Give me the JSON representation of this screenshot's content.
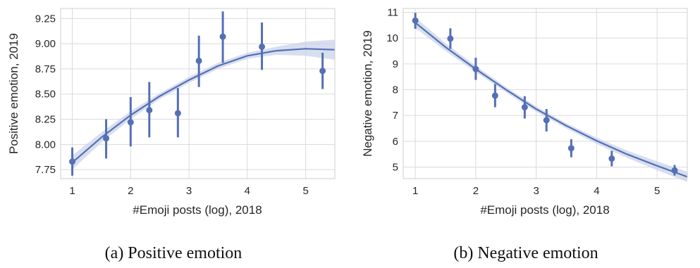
{
  "colors": {
    "series": "#5470b4",
    "band": "#c9d3ea",
    "grid": "#dadada",
    "text": "#262626"
  },
  "chart_data": [
    {
      "type": "scatter",
      "caption": "(a)  Positive emotion",
      "xlabel": "#Emoji posts (log), 2018",
      "ylabel": "Positive emotion, 2019",
      "xlim": [
        0.8,
        5.5
      ],
      "ylim": [
        7.66,
        9.35
      ],
      "xticks": [
        1,
        2,
        3,
        4,
        5
      ],
      "yticks": [
        7.75,
        8.0,
        8.25,
        8.5,
        8.75,
        9.0,
        9.25
      ],
      "ytick_labels": [
        "7.75",
        "8.00",
        "8.25",
        "8.50",
        "8.75",
        "9.00",
        "9.25"
      ],
      "grid": true,
      "points": [
        {
          "x": 1.0,
          "y": 7.83,
          "lo": 7.69,
          "hi": 7.97
        },
        {
          "x": 1.58,
          "y": 8.06,
          "lo": 7.86,
          "hi": 8.25
        },
        {
          "x": 2.0,
          "y": 8.22,
          "lo": 7.98,
          "hi": 8.47
        },
        {
          "x": 2.32,
          "y": 8.34,
          "lo": 8.07,
          "hi": 8.62
        },
        {
          "x": 2.81,
          "y": 8.31,
          "lo": 8.07,
          "hi": 8.56
        },
        {
          "x": 3.17,
          "y": 8.83,
          "lo": 8.57,
          "hi": 9.08
        },
        {
          "x": 3.58,
          "y": 9.07,
          "lo": 8.81,
          "hi": 9.32
        },
        {
          "x": 4.25,
          "y": 8.97,
          "lo": 8.74,
          "hi": 9.21
        },
        {
          "x": 5.29,
          "y": 8.73,
          "lo": 8.55,
          "hi": 8.91
        }
      ],
      "fit": {
        "x": [
          1.0,
          1.5,
          2.0,
          2.5,
          3.0,
          3.5,
          4.0,
          4.5,
          5.0,
          5.5
        ],
        "y": [
          7.82,
          8.07,
          8.29,
          8.48,
          8.64,
          8.78,
          8.88,
          8.93,
          8.95,
          8.94
        ],
        "lo": [
          7.75,
          8.02,
          8.25,
          8.45,
          8.61,
          8.75,
          8.85,
          8.89,
          8.88,
          8.84
        ],
        "hi": [
          7.89,
          8.12,
          8.33,
          8.51,
          8.67,
          8.81,
          8.91,
          8.97,
          9.02,
          9.04
        ]
      }
    },
    {
      "type": "scatter",
      "caption": "(b)  Negative emotion",
      "xlabel": "#Emoji posts (log), 2018",
      "ylabel": "Negative emotion, 2019",
      "xlim": [
        0.8,
        5.5
      ],
      "ylim": [
        4.55,
        11.15
      ],
      "xticks": [
        1,
        2,
        3,
        4,
        5
      ],
      "yticks": [
        5,
        6,
        7,
        8,
        9,
        10,
        11
      ],
      "ytick_labels": [
        "5",
        "6",
        "7",
        "8",
        "9",
        "10",
        "11"
      ],
      "grid": true,
      "points": [
        {
          "x": 1.0,
          "y": 10.68,
          "lo": 10.36,
          "hi": 10.98
        },
        {
          "x": 1.58,
          "y": 9.98,
          "lo": 9.58,
          "hi": 10.38
        },
        {
          "x": 2.0,
          "y": 8.8,
          "lo": 8.38,
          "hi": 9.24
        },
        {
          "x": 2.32,
          "y": 7.77,
          "lo": 7.32,
          "hi": 8.22
        },
        {
          "x": 2.81,
          "y": 7.32,
          "lo": 6.88,
          "hi": 7.75
        },
        {
          "x": 3.17,
          "y": 6.82,
          "lo": 6.38,
          "hi": 7.25
        },
        {
          "x": 3.58,
          "y": 5.73,
          "lo": 5.38,
          "hi": 6.08
        },
        {
          "x": 4.25,
          "y": 5.33,
          "lo": 5.03,
          "hi": 5.63
        },
        {
          "x": 5.29,
          "y": 4.87,
          "lo": 4.67,
          "hi": 5.08
        }
      ],
      "fit": {
        "x": [
          1.0,
          1.5,
          2.0,
          2.5,
          3.0,
          3.5,
          4.0,
          4.5,
          5.0,
          5.5
        ],
        "y": [
          10.6,
          9.65,
          8.8,
          8.0,
          7.25,
          6.6,
          6.02,
          5.5,
          5.05,
          4.62
        ],
        "lo": [
          10.4,
          9.5,
          8.68,
          7.9,
          7.15,
          6.5,
          5.9,
          5.36,
          4.88,
          4.42
        ],
        "hi": [
          10.8,
          9.8,
          8.92,
          8.1,
          7.35,
          6.7,
          6.14,
          5.64,
          5.22,
          4.82
        ]
      }
    }
  ]
}
